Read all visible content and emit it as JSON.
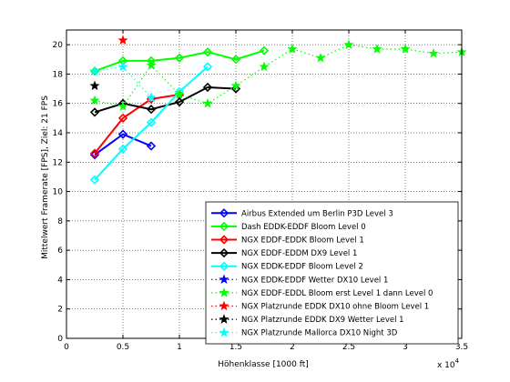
{
  "chart_data": {
    "type": "line",
    "title": "",
    "xlabel": "Höhenklasse [1000 ft]",
    "ylabel": "Mittelwert Framerate [FPS], Ziel: 21 FPS",
    "x_multiplier_label": "x 10",
    "x_multiplier_exponent": "4",
    "xlim": [
      0,
      35000
    ],
    "ylim": [
      0,
      21
    ],
    "xticks": [
      0,
      5000,
      10000,
      15000,
      20000,
      25000,
      30000,
      35000
    ],
    "xtick_labels": [
      "0",
      "0.5",
      "1",
      "1.5",
      "2",
      "2.5",
      "3",
      "3.5"
    ],
    "yticks": [
      0,
      2,
      4,
      6,
      8,
      10,
      12,
      14,
      16,
      18,
      20
    ],
    "ytick_labels": [
      "0",
      "2",
      "4",
      "6",
      "8",
      "10",
      "12",
      "14",
      "16",
      "18",
      "20"
    ],
    "grid": true,
    "legend_position": "bottom-right",
    "series": [
      {
        "name": "Airbus Extended um Berlin P3D Level 3",
        "color": "#0000ff",
        "dash": "solid",
        "marker": "diamond",
        "x": [
          2500,
          5000,
          7500
        ],
        "y": [
          12.5,
          13.9,
          13.1
        ]
      },
      {
        "name": "Dash EDDK-EDDF Bloom Level 0",
        "color": "#00ff00",
        "dash": "solid",
        "marker": "diamond",
        "x": [
          2500,
          5000,
          7500,
          10000,
          12500,
          15000,
          17500
        ],
        "y": [
          18.2,
          18.9,
          18.9,
          19.1,
          19.5,
          19.0,
          19.6
        ]
      },
      {
        "name": "NGX EDDF-EDDK Bloom Level 1",
        "color": "#ff0000",
        "dash": "solid",
        "marker": "diamond",
        "x": [
          2500,
          5000,
          7500,
          10000
        ],
        "y": [
          12.6,
          15.0,
          16.3,
          16.6
        ]
      },
      {
        "name": "NGX EDDF-EDDM DX9 Level 1",
        "color": "#000000",
        "dash": "solid",
        "marker": "diamond",
        "x": [
          2500,
          5000,
          7500,
          10000,
          12500,
          15000
        ],
        "y": [
          15.4,
          16.0,
          15.6,
          16.1,
          17.1,
          17.0
        ]
      },
      {
        "name": "NGX EDDK-EDDF Bloom Level 2",
        "color": "#00ffff",
        "dash": "solid",
        "marker": "diamond",
        "x": [
          2500,
          5000,
          7500,
          10000,
          12500
        ],
        "y": [
          10.8,
          12.9,
          14.7,
          16.8,
          18.5
        ]
      },
      {
        "name": "NGX EDDK-EDDF Wetter DX10 Level 1",
        "color": "#0000ff",
        "dash": "dotted",
        "marker": "star",
        "x": [],
        "y": []
      },
      {
        "name": "NGX EDDF-EDDL Bloom erst Level 1 dann Level 0",
        "color": "#00ff00",
        "dash": "dotted",
        "marker": "star",
        "x": [
          2500,
          5000,
          7500,
          10000,
          12500,
          15000,
          17500,
          20000,
          22500,
          25000,
          27500,
          30000,
          32500,
          35000
        ],
        "y": [
          16.2,
          15.8,
          18.6,
          16.6,
          16.0,
          17.2,
          18.5,
          19.7,
          19.1,
          20.0,
          19.7,
          19.7,
          19.4,
          19.5
        ]
      },
      {
        "name": "NGX Platzrunde EDDK DX10 ohne Bloom Level 1",
        "color": "#ff0000",
        "dash": "dotted",
        "marker": "star",
        "x": [
          5000
        ],
        "y": [
          20.3
        ]
      },
      {
        "name": "NGX Platzrunde EDDK DX9 Wetter Level 1",
        "color": "#000000",
        "dash": "dotted",
        "marker": "star",
        "x": [
          2500
        ],
        "y": [
          17.2
        ]
      },
      {
        "name": "NGX Platzrunde Mallorca DX10 Night 3D",
        "color": "#00ffff",
        "dash": "dotted",
        "marker": "star",
        "x": [
          2500,
          5000,
          7500
        ],
        "y": [
          18.2,
          18.5,
          16.4
        ]
      }
    ]
  }
}
